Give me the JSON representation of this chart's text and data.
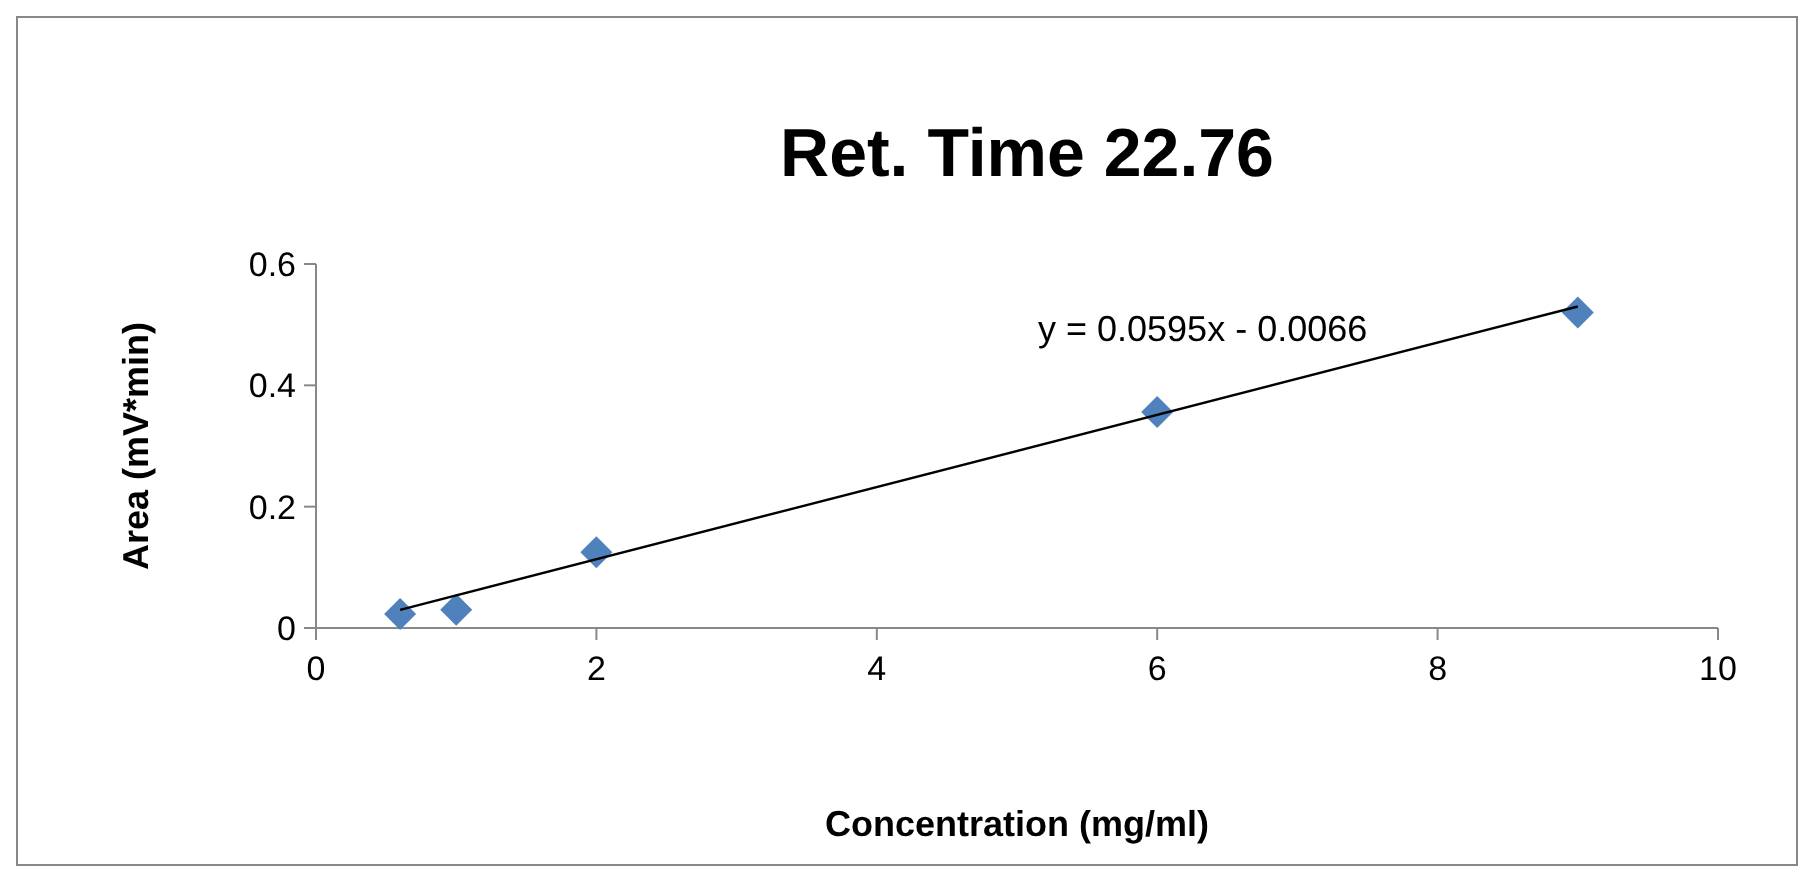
{
  "chart_data": {
    "type": "scatter",
    "title": "Ret. Time 22.76",
    "xlabel": "Concentration (mg/ml)",
    "ylabel": "Area (mV*min)",
    "xlim": [
      0,
      10
    ],
    "xticks": [
      0,
      2,
      4,
      6,
      8,
      10
    ],
    "ylim": [
      0,
      0.6
    ],
    "yticks": [
      0,
      0.2,
      0.4,
      0.6
    ],
    "grid": false,
    "marker": "diamond",
    "series": [
      {
        "color": "#4f81bd",
        "x": [
          0.6,
          1,
          2,
          6,
          9
        ],
        "values": [
          0.023,
          0.03,
          0.125,
          0.356,
          0.52
        ]
      },
      {
        "type": "line",
        "color": "#000000",
        "line_style": "solid",
        "marker": "none",
        "x": [
          0.6,
          9
        ],
        "values": [
          0.03,
          0.53
        ]
      }
    ],
    "annotations": [
      "y = 0.0595x - 0.0066"
    ]
  }
}
